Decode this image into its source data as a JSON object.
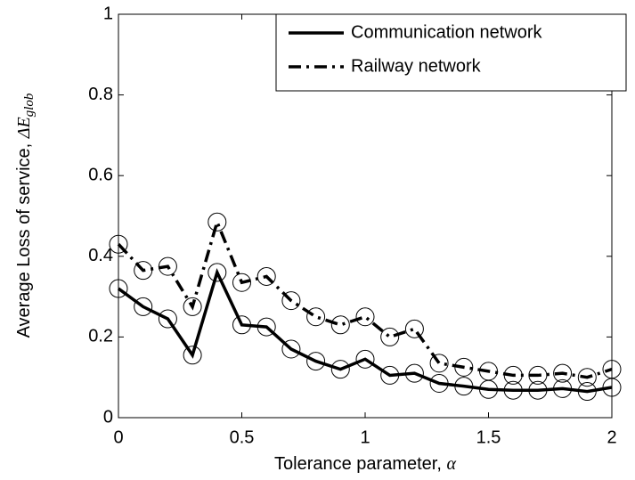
{
  "chart_data": {
    "type": "line",
    "xlabel": {
      "text": "Tolerance parameter,",
      "symbol": "α"
    },
    "ylabel": {
      "text": "Average Loss of service,",
      "symbol": "ΔE",
      "subscript": "glob"
    },
    "x": [
      0,
      0.1,
      0.2,
      0.3,
      0.4,
      0.5,
      0.6,
      0.7,
      0.8,
      0.9,
      1.0,
      1.1,
      1.2,
      1.3,
      1.4,
      1.5,
      1.6,
      1.7,
      1.8,
      1.9,
      2.0
    ],
    "series": [
      {
        "name": "Communication network",
        "color": "#000000",
        "linestyle": "solid",
        "marker": "circle",
        "values": [
          0.32,
          0.275,
          0.245,
          0.155,
          0.36,
          0.23,
          0.225,
          0.17,
          0.14,
          0.12,
          0.145,
          0.105,
          0.11,
          0.085,
          0.078,
          0.07,
          0.068,
          0.068,
          0.072,
          0.065,
          0.075
        ]
      },
      {
        "name": "Railway network",
        "color": "#000000",
        "linestyle": "dashdot",
        "marker": "circle",
        "values": [
          0.43,
          0.365,
          0.375,
          0.275,
          0.485,
          0.335,
          0.35,
          0.29,
          0.25,
          0.23,
          0.25,
          0.2,
          0.22,
          0.135,
          0.125,
          0.115,
          0.105,
          0.105,
          0.11,
          0.1,
          0.12
        ]
      }
    ],
    "xlim": [
      0,
      2
    ],
    "xticks": [
      0,
      0.5,
      1,
      1.5,
      2
    ],
    "ylim": [
      0,
      1
    ],
    "yticks": [
      0,
      0.2,
      0.4,
      0.6,
      0.8,
      1
    ],
    "grid": false,
    "legend": "upper right"
  }
}
